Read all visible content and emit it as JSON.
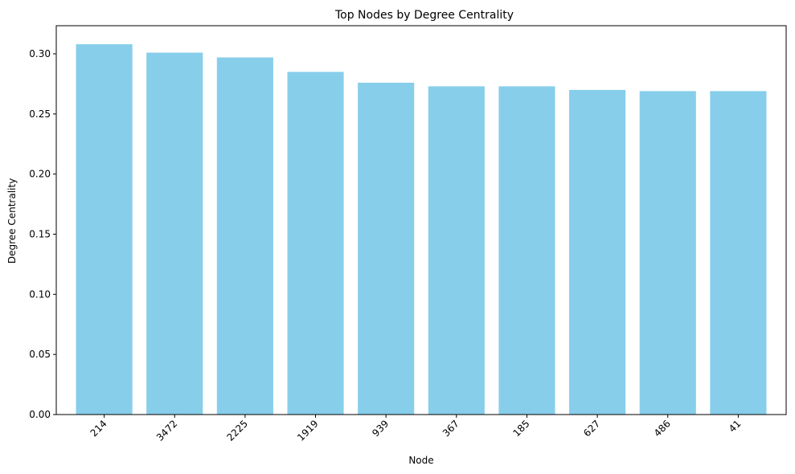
{
  "chart_data": {
    "type": "bar",
    "title": "Top Nodes by Degree Centrality",
    "xlabel": "Node",
    "ylabel": "Degree Centrality",
    "categories": [
      "214",
      "3472",
      "2225",
      "1919",
      "939",
      "367",
      "185",
      "627",
      "486",
      "41"
    ],
    "values": [
      0.308,
      0.301,
      0.297,
      0.285,
      0.276,
      0.273,
      0.273,
      0.27,
      0.269,
      0.269
    ],
    "ylim": [
      0,
      0.3234
    ],
    "yticks": [
      0.0,
      0.05,
      0.1,
      0.15,
      0.2,
      0.25,
      0.3
    ],
    "ytick_labels": [
      "0.00",
      "0.05",
      "0.10",
      "0.15",
      "0.20",
      "0.25",
      "0.30"
    ],
    "bar_color": "#87ceeb",
    "grid": false,
    "xtick_rotation_deg": 45
  }
}
